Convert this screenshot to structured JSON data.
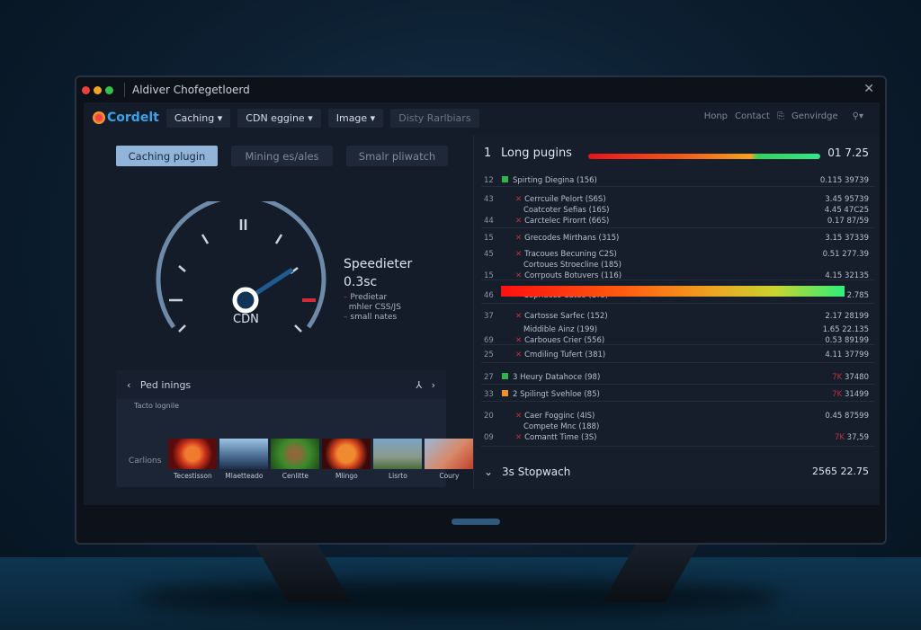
{
  "window": {
    "title": "Aldiver Chofegetloerd",
    "close_icon": "close-icon"
  },
  "nav": {
    "logo": "Cordelt",
    "items": [
      "Caching",
      "CDN eggine",
      "Image"
    ],
    "disabled_item": "Disty Rarlbiars",
    "right_links": [
      "Honp",
      "Contact",
      "Genvirdge"
    ],
    "search_icon": "search-icon"
  },
  "tabs": [
    {
      "label": "Caching plugin",
      "active": true
    },
    {
      "label": "Mining es/ales",
      "active": false
    },
    {
      "label": "Smalr pliwatch",
      "active": false
    }
  ],
  "gauge": {
    "center_label": "CDN",
    "title": "Speedieter",
    "value": "0.3sc",
    "legend": [
      {
        "label": "Predietar",
        "color": "#d62a36"
      },
      {
        "label": "mhler CSS/JS",
        "color": ""
      },
      {
        "label": "small nates",
        "color": "#2e9a4a"
      }
    ]
  },
  "bottom_panel": {
    "title": "Ped inings",
    "subtitle": "Tacto lognile",
    "caption_label": "Carlions",
    "thumbnails": [
      {
        "label": "Tecestisson"
      },
      {
        "label": "Mlaetteado"
      },
      {
        "label": "Cenlitte"
      },
      {
        "label": "Mlingo"
      },
      {
        "label": "Lisrto"
      },
      {
        "label": "Coury"
      }
    ]
  },
  "right_panel": {
    "header": {
      "num": "1",
      "title": "Long pugins",
      "value": "01 7.25",
      "bar_fill": 1.0
    },
    "rows": [
      {
        "num": "12",
        "name": "Spirting Diegina (156)",
        "value": "0.115 39739",
        "marker": "#2fb54a"
      },
      {
        "num": "43",
        "name": "Cerrcuile Pelort (S6S)",
        "value": "3.45 95739",
        "x": true
      },
      {
        "num": "",
        "name": "Coatcoter Sefias (16S)",
        "value": "4.45 47C25"
      },
      {
        "num": "44",
        "name": "Carctelec Pirorrt (66S)",
        "value": "0.17 87/59",
        "x": true
      },
      {
        "num": "15",
        "name": "Grecodes Mirthans (315)",
        "value": "3.15 37339",
        "x": true
      },
      {
        "num": "45",
        "name": "Tracoues Becuning C2S)",
        "value": "0.51 277.39",
        "x": true
      },
      {
        "num": "",
        "name": "Cortoues Stroecline (185)",
        "value": ""
      },
      {
        "num": "15",
        "name": "Corrpouts Botuvers (116)",
        "value": "4.15 32135",
        "x": true
      },
      {
        "num": "46",
        "name": "Cepriaces Cateo (1?5)",
        "value": "2.785",
        "bar": true
      },
      {
        "num": "37",
        "name": "Cartosse Sarfec (152)",
        "value": "2.17 28199",
        "x": true
      },
      {
        "num": "",
        "name": "Middible Ainz (199)",
        "value": "1.65 22.135"
      },
      {
        "num": "69",
        "name": "Carboues Crier (556)",
        "value": "0.53 89199",
        "x": true
      },
      {
        "num": "25",
        "name": "Cmdiling Tufert (381)",
        "value": "4.11 37799",
        "x": true
      },
      {
        "num": "27",
        "name": "3 Heury Datahoce (98)",
        "value": "37480",
        "tag": "7K",
        "marker": "#2fb54a"
      },
      {
        "num": "33",
        "name": "2 Spilingt Svehloe (85)",
        "value": "31499",
        "tag": "7K",
        "marker": "#f0902a"
      },
      {
        "num": "20",
        "name": "Caer Fogginc (4IS)",
        "value": "0.45 87599",
        "x": true
      },
      {
        "num": "",
        "name": "Compete Mnc (188)",
        "value": ""
      },
      {
        "num": "09",
        "name": "Comantt Time (3S)",
        "value": "37,59",
        "tag": "7K",
        "x": true
      }
    ],
    "footer": {
      "title": "3s Stopwach",
      "value": "2565 22.75"
    }
  }
}
